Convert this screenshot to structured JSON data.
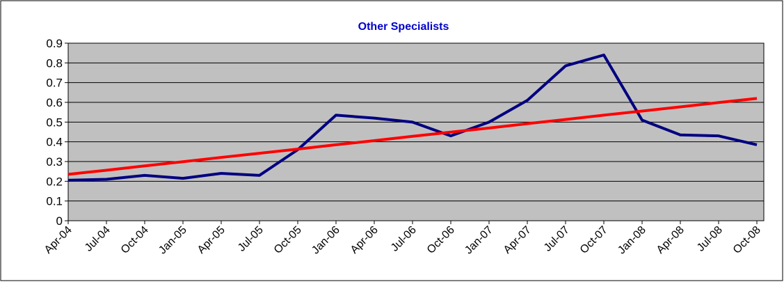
{
  "chart_data": {
    "type": "line",
    "title": "Other Specialists",
    "categories": [
      "Apr-04",
      "Jul-04",
      "Oct-04",
      "Jan-05",
      "Apr-05",
      "Jul-05",
      "Oct-05",
      "Jan-06",
      "Apr-06",
      "Jul-06",
      "Oct-06",
      "Jan-07",
      "Apr-07",
      "Jul-07",
      "Oct-07",
      "Jan-08",
      "Apr-08",
      "Jul-08",
      "Oct-08"
    ],
    "series": [
      {
        "color": "#000080",
        "values": [
          0.205,
          0.21,
          0.23,
          0.215,
          0.24,
          0.23,
          0.36,
          0.535,
          0.52,
          0.5,
          0.43,
          0.5,
          0.61,
          0.785,
          0.84,
          0.51,
          0.435,
          0.43,
          0.385
        ]
      },
      {
        "color": "#ff0000",
        "values": [
          0.235,
          0.256,
          0.278,
          0.299,
          0.321,
          0.342,
          0.363,
          0.385,
          0.406,
          0.428,
          0.449,
          0.47,
          0.492,
          0.513,
          0.535,
          0.556,
          0.577,
          0.599,
          0.62
        ]
      }
    ],
    "ylim": [
      0,
      0.9
    ],
    "yticks": [
      0,
      0.1,
      0.2,
      0.3,
      0.4,
      0.5,
      0.6,
      0.7,
      0.8,
      0.9
    ],
    "grid": true,
    "plot_background": "#c0c0c0",
    "title_color": "#0000cc"
  }
}
